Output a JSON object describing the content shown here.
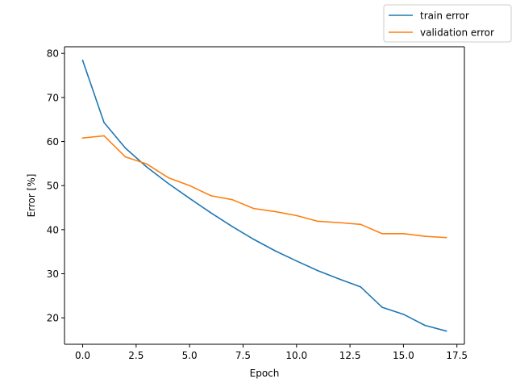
{
  "chart_data": {
    "type": "line",
    "title": "",
    "xlabel": "Epoch",
    "ylabel": "Error [%]",
    "xlim": [
      -0.85,
      17.85
    ],
    "ylim": [
      14.0,
      81.5
    ],
    "x_ticks": [
      0.0,
      2.5,
      5.0,
      7.5,
      10.0,
      12.5,
      15.0,
      17.5
    ],
    "x_tick_labels": [
      "0.0",
      "2.5",
      "5.0",
      "7.5",
      "10.0",
      "12.5",
      "15.0",
      "17.5"
    ],
    "y_ticks": [
      20,
      30,
      40,
      50,
      60,
      70,
      80
    ],
    "y_tick_labels": [
      "20",
      "30",
      "40",
      "50",
      "60",
      "70",
      "80"
    ],
    "grid": false,
    "legend_position": "top-right (outside plot)",
    "x": [
      0,
      1,
      2,
      3,
      4,
      5,
      6,
      7,
      8,
      9,
      10,
      11,
      12,
      13,
      14,
      15,
      16,
      17
    ],
    "series": [
      {
        "name": "train error",
        "color": "#1f77b4",
        "values": [
          78.4,
          64.3,
          58.5,
          54.2,
          50.5,
          47.1,
          43.8,
          40.7,
          37.8,
          35.2,
          32.9,
          30.7,
          28.8,
          27.0,
          22.4,
          20.8,
          18.3,
          17.0
        ]
      },
      {
        "name": "validation error",
        "color": "#ff7f0e",
        "values": [
          60.8,
          61.3,
          56.5,
          54.9,
          51.8,
          50.0,
          47.7,
          46.8,
          44.8,
          44.1,
          43.2,
          41.9,
          41.6,
          41.2,
          39.1,
          39.1,
          38.5,
          38.2
        ]
      }
    ]
  }
}
